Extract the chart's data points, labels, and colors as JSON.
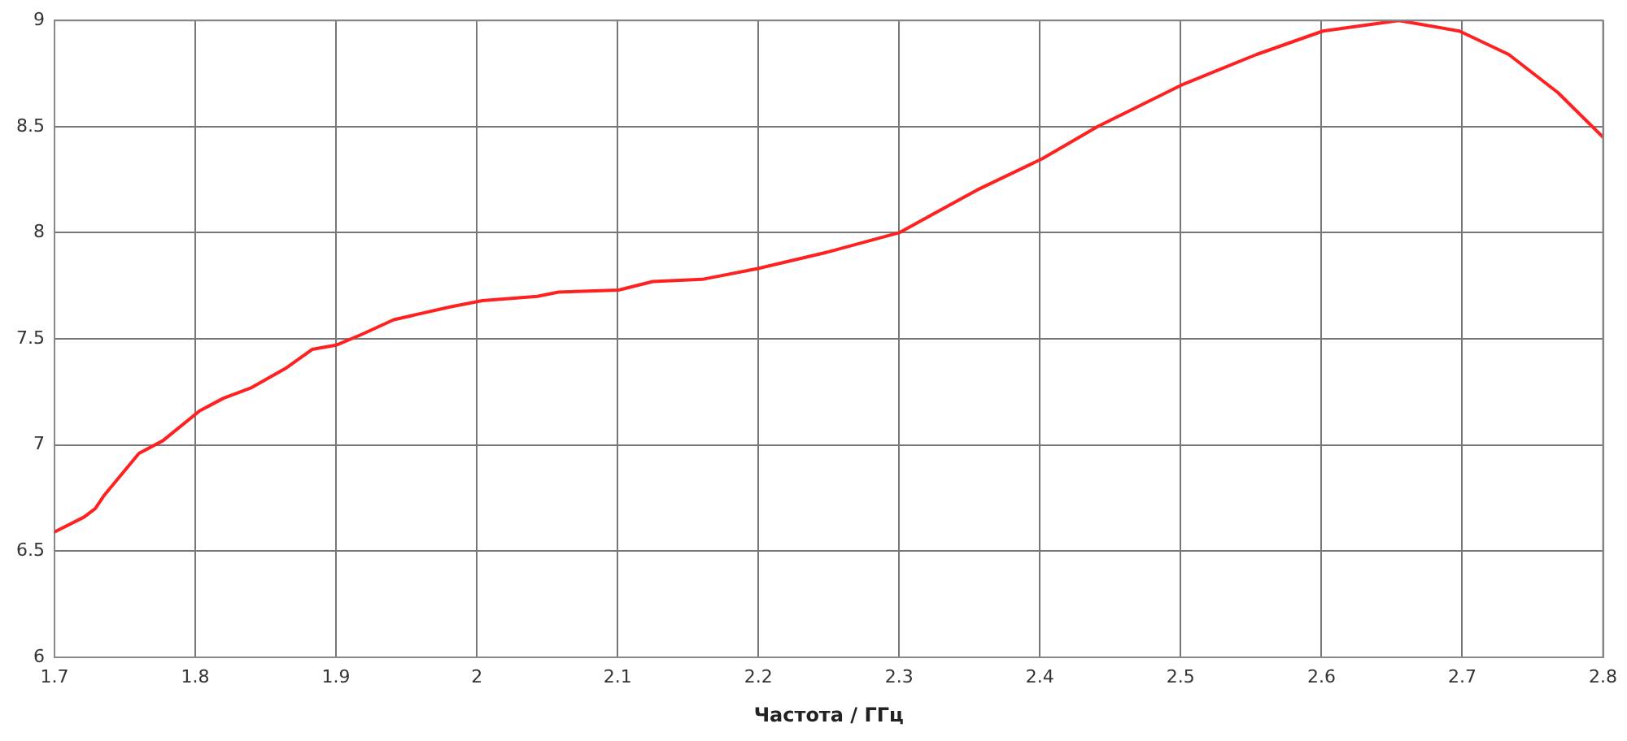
{
  "chart_data": {
    "type": "line",
    "xlabel": "Частота / ГГц",
    "xlim": [
      1.7,
      2.8
    ],
    "xticks": [
      1.7,
      1.8,
      1.9,
      2,
      2.1,
      2.2,
      2.3,
      2.4,
      2.5,
      2.6,
      2.7,
      2.8
    ],
    "ylim": [
      6,
      9
    ],
    "yticks": [
      6,
      6.5,
      7,
      7.5,
      8,
      8.5,
      9
    ],
    "grid": true,
    "legend": false,
    "marker": "none",
    "line_style": "solid",
    "series": [
      {
        "color": "#ff2020",
        "x": [
          1.7,
          1.721,
          1.729,
          1.735,
          1.76,
          1.777,
          1.803,
          1.82,
          1.84,
          1.864,
          1.883,
          1.9,
          1.918,
          1.941,
          1.981,
          2.004,
          2.043,
          2.058,
          2.101,
          2.125,
          2.16,
          2.199,
          2.25,
          2.3,
          2.355,
          2.402,
          2.441,
          2.502,
          2.554,
          2.601,
          2.655,
          2.698,
          2.733,
          2.768,
          2.8
        ],
        "values": [
          6.59,
          6.66,
          6.7,
          6.76,
          6.96,
          7.02,
          7.16,
          7.22,
          7.27,
          7.36,
          7.45,
          7.47,
          7.52,
          7.59,
          7.65,
          7.68,
          7.7,
          7.72,
          7.73,
          7.77,
          7.78,
          7.83,
          7.91,
          8.0,
          8.2,
          8.35,
          8.5,
          8.7,
          8.84,
          8.95,
          9.0,
          8.95,
          8.84,
          8.66,
          8.45
        ]
      }
    ]
  }
}
